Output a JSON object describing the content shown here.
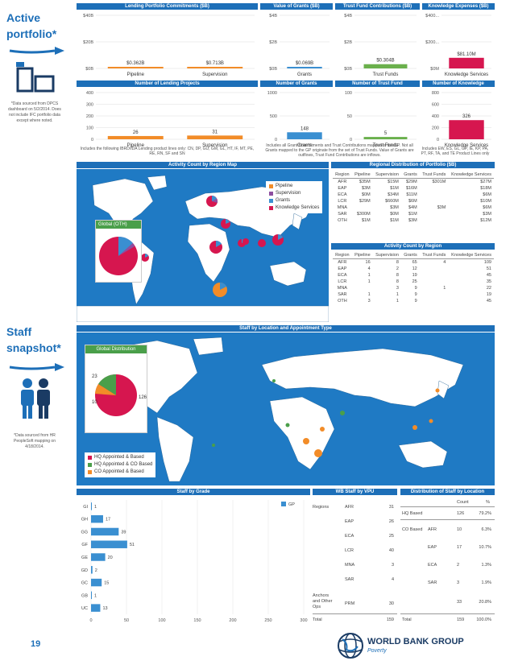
{
  "side": {
    "active_title_1": "Active",
    "active_title_2": "portfolio*",
    "active_note": "*Data sourced from DPCS dashboard on 5/2/2014. Does not include IFC portfolio data except where noted.",
    "staff_title_1": "Staff",
    "staff_title_2": "snapshot*",
    "staff_note": "*Data sourced from HR PeopleSoft mapping on 4/18/2014."
  },
  "top_panels": [
    {
      "title": "Lending Portfolio Commitments ($B)",
      "yticks": [
        "$0B",
        "$20B",
        "$40B"
      ],
      "categories": [
        "Pipeline",
        "Supervision"
      ],
      "labels": [
        "$0.362B",
        "$0.713B"
      ]
    },
    {
      "title": "Value of Grants ($B)",
      "yticks": [
        "$0B",
        "$2B",
        "$4B"
      ],
      "categories": [
        "Grants"
      ],
      "labels": [
        "$0.069B"
      ]
    },
    {
      "title": "Trust Fund Contributions ($B)",
      "yticks": [
        "$0B",
        "$2B",
        "$4B"
      ],
      "categories": [
        "Trust Funds"
      ],
      "labels": [
        "$0.304B"
      ]
    },
    {
      "title": "Knowledge Expenses ($B)",
      "yticks": [
        "$0M",
        "$200...",
        "$400..."
      ],
      "categories": [
        "Knowledge Services"
      ],
      "labels": [
        "$81.10M"
      ]
    }
  ],
  "count_panels": [
    {
      "title": "Number of Lending Projects",
      "yticks": [
        "0",
        "100",
        "200",
        "300",
        "400"
      ],
      "categories": [
        "Pipeline",
        "Supervision"
      ],
      "labels": [
        "26",
        "31"
      ]
    },
    {
      "title": "Number of Grants",
      "yticks": [
        "0",
        "500",
        "1000"
      ],
      "categories": [
        "Grants"
      ],
      "labels": [
        "148"
      ]
    },
    {
      "title": "Number of Trust Fund",
      "yticks": [
        "0",
        "50",
        "100"
      ],
      "categories": [
        "Trust Funds"
      ],
      "labels": [
        "5"
      ]
    },
    {
      "title": "Number of Knowledge Activities",
      "yticks": [
        "0",
        "200",
        "400",
        "600",
        "800"
      ],
      "categories": [
        "Knowledge Services"
      ],
      "labels": [
        "326"
      ]
    }
  ],
  "notes": {
    "lending": "Includes the following IBRD/IDA Lending product lines only: CN, DP, GU, GM, GL, HT, IF, MT, PE, RE, RN, SF and SN",
    "grants": "Includes all Grant Commitments and Trust Contributions mapped to the GP. Not all Grants mapped to the GP originate from the set of Trust Funds. Value of Grants are outflows, Trust Fund Contributions are inflows.",
    "knowledge": "Includes EW, ES, GL, GP, IE, KP, PA, PT, RF, TA, and TE Product Lines only"
  },
  "map1": {
    "title": "Activity Count by Region Map",
    "legend": [
      "Pipeline",
      "Supervision",
      "Grants",
      "Knowledge Services"
    ],
    "global_label": "Global (OTH)"
  },
  "regional_distribution": {
    "title": "Regional Distribution of Portfolio ($B)",
    "headers": [
      "Region",
      "Pipeline",
      "Supervision",
      "Grants",
      "Trust Funds",
      "Knowledge Services"
    ],
    "rows": [
      [
        "AFR",
        "$35M",
        "$15M",
        "$29M",
        "$301M",
        "$27M"
      ],
      [
        "EAP",
        "$3M",
        "$1M",
        "$16M",
        "",
        "$18M"
      ],
      [
        "ECA",
        "$0M",
        "$34M",
        "$11M",
        "",
        "$6M"
      ],
      [
        "LCR",
        "$29M",
        "$660M",
        "$6M",
        "",
        "$10M"
      ],
      [
        "MNA",
        "",
        "$3M",
        "$4M",
        "$3M",
        "$6M"
      ],
      [
        "SAR",
        "$300M",
        "$0M",
        "$1M",
        "",
        "$3M"
      ],
      [
        "OTH",
        "$1M",
        "$1M",
        "$3M",
        "",
        "$12M"
      ]
    ]
  },
  "activity_count": {
    "title": "Activity Count by Region",
    "headers": [
      "Region",
      "Pipeline",
      "Supervision",
      "Grants",
      "Trust Funds",
      "Knowledge Services"
    ],
    "rows": [
      [
        "AFR",
        "16",
        "8",
        "65",
        "4",
        "109"
      ],
      [
        "EAP",
        "4",
        "2",
        "12",
        "",
        "51"
      ],
      [
        "ECA",
        "1",
        "8",
        "19",
        "",
        "45"
      ],
      [
        "LCR",
        "1",
        "8",
        "25",
        "",
        "35"
      ],
      [
        "MNA",
        "",
        "3",
        "9",
        "1",
        "22"
      ],
      [
        "SAR",
        "1",
        "1",
        "9",
        "",
        "19"
      ],
      [
        "OTH",
        "3",
        "1",
        "9",
        "",
        "45"
      ]
    ]
  },
  "map2": {
    "title": "Staff by Location and Appointment Type",
    "global_title": "Global Distribution",
    "pie_values": [
      "126",
      "23",
      "10"
    ],
    "legend": [
      "HQ Appointed & Based",
      "HQ Appointed & CO Based",
      "CO Appointed & Based"
    ]
  },
  "staff_grade": {
    "title": "Staff by Grade",
    "legend": "GP",
    "xticks": [
      "0",
      "50",
      "100",
      "150",
      "200",
      "250",
      "300"
    ]
  },
  "chart_data": {
    "type": "bar",
    "title": "Staff by Grade",
    "categories": [
      "GI",
      "GH",
      "GG",
      "GF",
      "GE",
      "GD",
      "GC",
      "GB",
      "UC"
    ],
    "values": [
      1,
      17,
      39,
      51,
      20,
      2,
      15,
      1,
      13
    ],
    "series": [
      {
        "name": "GP",
        "values": [
          1,
          17,
          39,
          51,
          20,
          2,
          15,
          1,
          13
        ]
      }
    ],
    "xlim": [
      0,
      300
    ],
    "orientation": "horizontal"
  },
  "vpu": {
    "title": "WB Staff by VPU",
    "regions_label": "Regions",
    "rows": [
      {
        "name": "AFR",
        "value": "31"
      },
      {
        "name": "EAP",
        "value": "26"
      },
      {
        "name": "ECA",
        "value": "25"
      },
      {
        "name": "LCR",
        "value": "40"
      },
      {
        "name": "MNA",
        "value": "3"
      },
      {
        "name": "SAR",
        "value": "4"
      }
    ],
    "anchors_label": "Anchors and Other Ops",
    "anchors_name": "PRM",
    "anchors_value": "30",
    "total_label": "Total",
    "total_value": "159"
  },
  "location": {
    "title": "Distribution of Staff by Location",
    "count_header": "Count",
    "pct_header": "%",
    "hq_label": "HQ Based",
    "hq_count": "126",
    "hq_pct": "79.2%",
    "co_label": "CO Based",
    "co_rows": [
      {
        "name": "AFR",
        "count": "10",
        "pct": "6.3%"
      },
      {
        "name": "EAP",
        "count": "17",
        "pct": "10.7%"
      },
      {
        "name": "ECA",
        "count": "2",
        "pct": "1.3%"
      },
      {
        "name": "SAR",
        "count": "3",
        "pct": "1.9%"
      }
    ],
    "co_total_count": "33",
    "co_total_pct": "20.8%",
    "total_label": "Total",
    "total_count": "159",
    "total_pct": "100.0%"
  },
  "footer": {
    "page": "19",
    "org": "WORLD BANK GROUP",
    "unit": "Poverty"
  },
  "colors": {
    "blue": "#1d6fb8",
    "pipeline": "#f28c28",
    "supervision": "#8e4ea0",
    "grants": "#3a8fd1",
    "trust": "#6ab04c",
    "knowledge": "#d6164f",
    "map_water": "#1f7ac4",
    "map_land": "#ffffff"
  }
}
